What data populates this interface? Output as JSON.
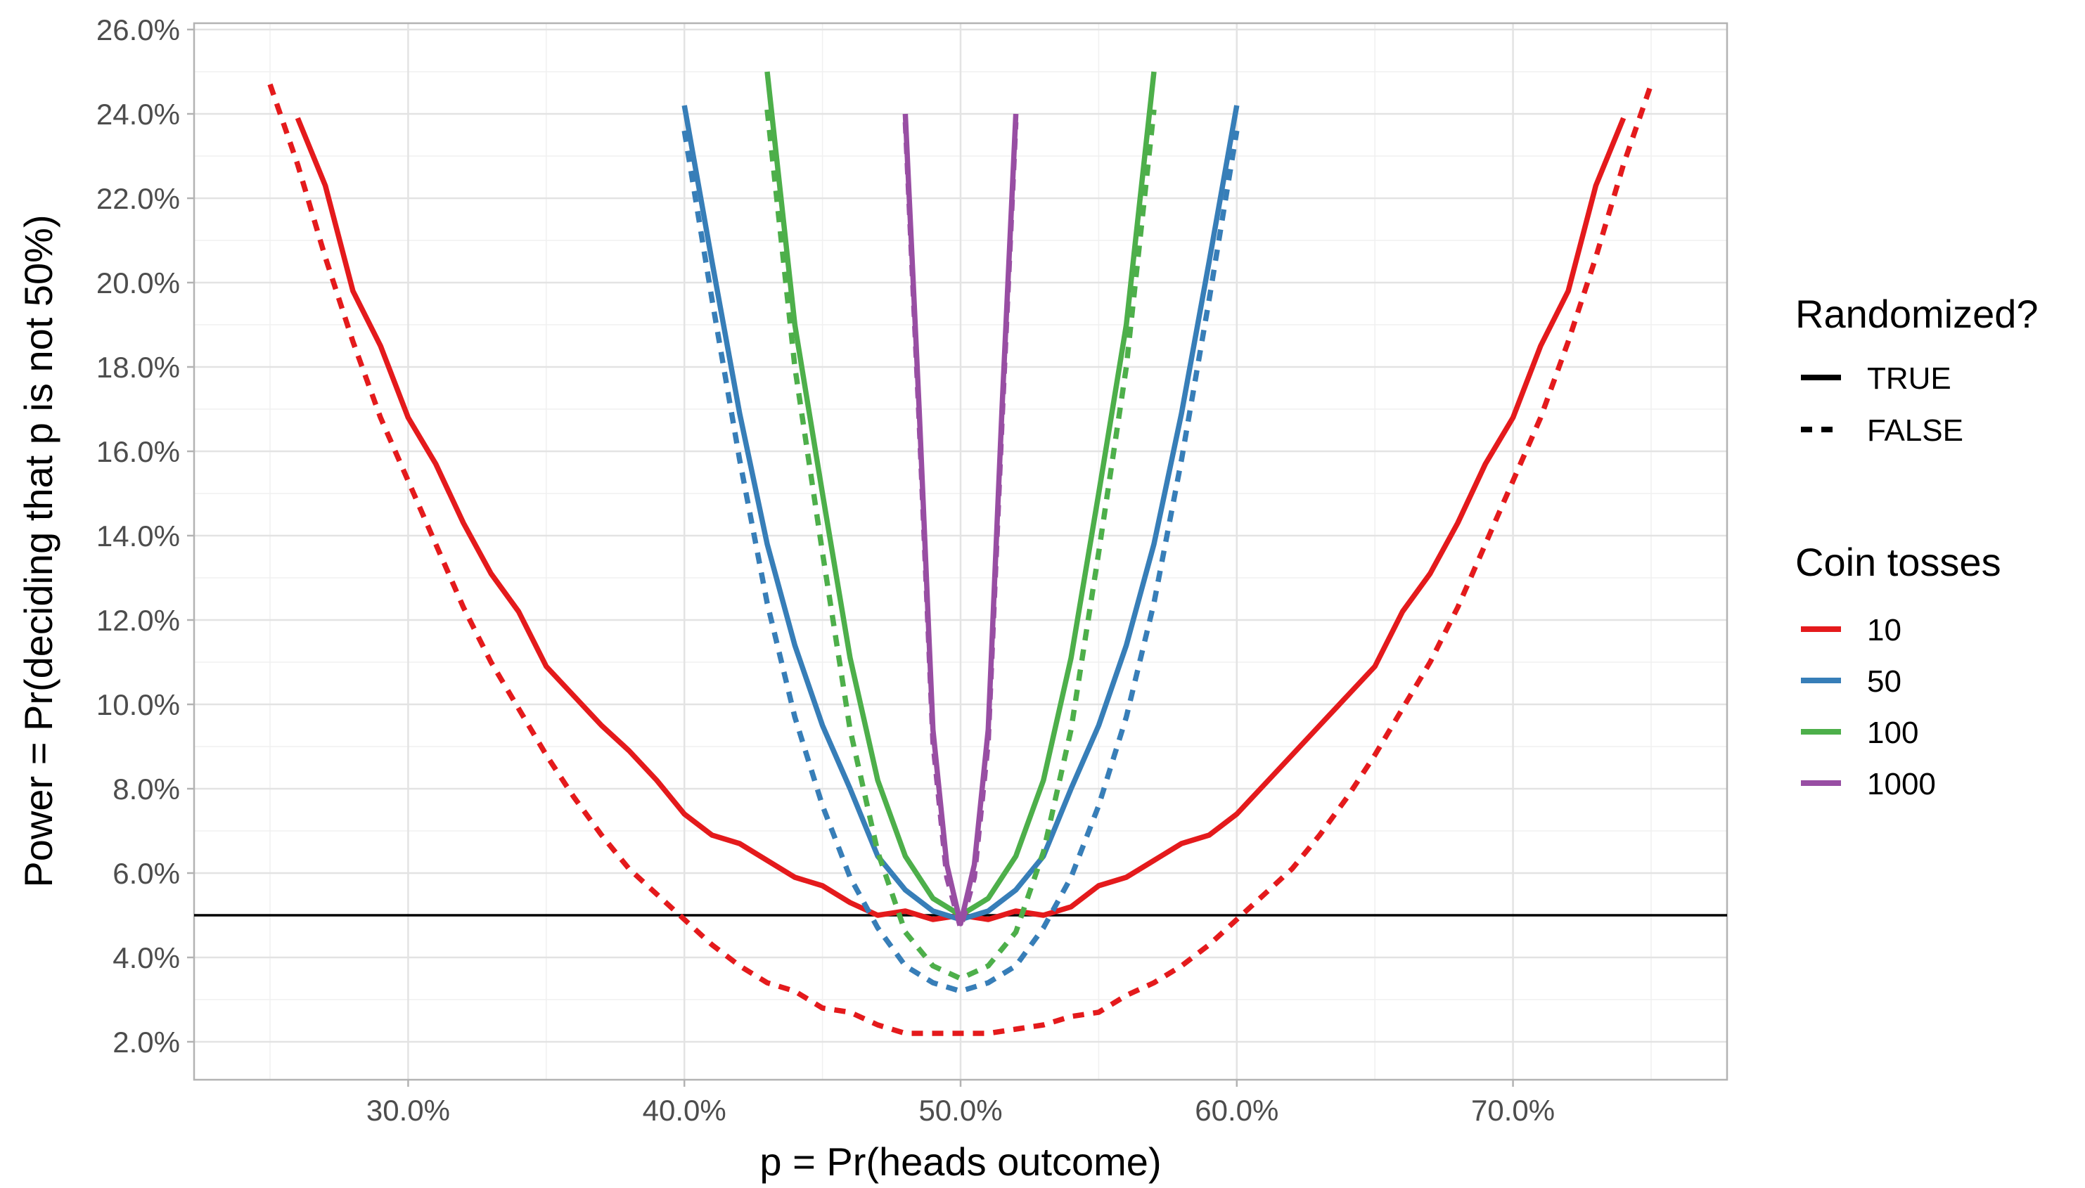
{
  "chart_data": {
    "type": "line",
    "title": "",
    "xlabel": "p = Pr(heads outcome)",
    "ylabel": "Power = Pr(deciding that p is not 50%)",
    "xlim": [
      0.2225,
      0.7775
    ],
    "ylim": [
      0.011,
      0.2615
    ],
    "x_ticks": [
      0.3,
      0.4,
      0.5,
      0.6,
      0.7
    ],
    "x_tick_labels": [
      "30.0%",
      "40.0%",
      "50.0%",
      "60.0%",
      "70.0%"
    ],
    "y_ticks": [
      0.02,
      0.04,
      0.06,
      0.08,
      0.1,
      0.12,
      0.14,
      0.16,
      0.18,
      0.2,
      0.22,
      0.24,
      0.26
    ],
    "y_tick_labels": [
      "2.0%",
      "4.0%",
      "6.0%",
      "8.0%",
      "10.0%",
      "12.0%",
      "14.0%",
      "16.0%",
      "18.0%",
      "20.0%",
      "22.0%",
      "24.0%",
      "26.0%"
    ],
    "grid": true,
    "reference_line": 0.05,
    "legend_position": "right",
    "legend": {
      "linetype_title": "Randomized?",
      "linetype_items": [
        {
          "label": "TRUE",
          "dash": "solid"
        },
        {
          "label": "FALSE",
          "dash": "dashed"
        }
      ],
      "color_title": "Coin tosses",
      "color_items": [
        {
          "label": "10",
          "color": "#e41a1c"
        },
        {
          "label": "50",
          "color": "#377eb8"
        },
        {
          "label": "100",
          "color": "#4daf4a"
        },
        {
          "label": "1000",
          "color": "#984ea3"
        }
      ]
    },
    "series": [
      {
        "name": "10",
        "randomized": "TRUE",
        "color": "#e41a1c",
        "dash": "solid",
        "x": [
          0.26,
          0.27,
          0.28,
          0.29,
          0.3,
          0.31,
          0.32,
          0.33,
          0.34,
          0.35,
          0.36,
          0.37,
          0.38,
          0.39,
          0.4,
          0.41,
          0.42,
          0.43,
          0.44,
          0.45,
          0.46,
          0.47,
          0.48,
          0.49,
          0.5,
          0.51,
          0.52,
          0.53,
          0.54,
          0.55,
          0.56,
          0.57,
          0.58,
          0.59,
          0.6,
          0.61,
          0.62,
          0.63,
          0.64,
          0.65,
          0.66,
          0.67,
          0.68,
          0.69,
          0.7,
          0.71,
          0.72,
          0.73,
          0.74
        ],
        "y": [
          0.239,
          0.223,
          0.198,
          0.185,
          0.168,
          0.157,
          0.143,
          0.131,
          0.122,
          0.109,
          0.102,
          0.095,
          0.089,
          0.082,
          0.074,
          0.069,
          0.067,
          0.063,
          0.059,
          0.057,
          0.053,
          0.05,
          0.051,
          0.049,
          0.05,
          0.049,
          0.051,
          0.05,
          0.052,
          0.057,
          0.059,
          0.063,
          0.067,
          0.069,
          0.074,
          0.081,
          0.088,
          0.095,
          0.102,
          0.109,
          0.122,
          0.131,
          0.143,
          0.157,
          0.168,
          0.185,
          0.198,
          0.223,
          0.239
        ]
      },
      {
        "name": "10",
        "randomized": "FALSE",
        "color": "#e41a1c",
        "dash": "dashed",
        "x": [
          0.25,
          0.26,
          0.27,
          0.28,
          0.29,
          0.3,
          0.31,
          0.32,
          0.33,
          0.34,
          0.35,
          0.36,
          0.37,
          0.38,
          0.39,
          0.4,
          0.41,
          0.42,
          0.43,
          0.44,
          0.45,
          0.46,
          0.47,
          0.48,
          0.49,
          0.5,
          0.51,
          0.52,
          0.53,
          0.54,
          0.55,
          0.56,
          0.57,
          0.58,
          0.59,
          0.6,
          0.61,
          0.62,
          0.63,
          0.64,
          0.65,
          0.66,
          0.67,
          0.68,
          0.69,
          0.7,
          0.71,
          0.72,
          0.73,
          0.74,
          0.75
        ],
        "y": [
          0.247,
          0.228,
          0.206,
          0.186,
          0.168,
          0.153,
          0.138,
          0.123,
          0.11,
          0.099,
          0.088,
          0.078,
          0.069,
          0.061,
          0.055,
          0.049,
          0.043,
          0.038,
          0.034,
          0.032,
          0.028,
          0.027,
          0.024,
          0.022,
          0.022,
          0.022,
          0.022,
          0.023,
          0.024,
          0.026,
          0.027,
          0.031,
          0.034,
          0.038,
          0.043,
          0.049,
          0.055,
          0.061,
          0.069,
          0.078,
          0.088,
          0.099,
          0.11,
          0.123,
          0.138,
          0.153,
          0.168,
          0.186,
          0.206,
          0.228,
          0.247
        ]
      },
      {
        "name": "50",
        "randomized": "TRUE",
        "color": "#377eb8",
        "dash": "solid",
        "x": [
          0.4,
          0.41,
          0.42,
          0.43,
          0.44,
          0.45,
          0.46,
          0.47,
          0.48,
          0.49,
          0.5,
          0.51,
          0.52,
          0.53,
          0.54,
          0.55,
          0.56,
          0.57,
          0.58,
          0.59,
          0.6
        ],
        "y": [
          0.242,
          0.205,
          0.169,
          0.138,
          0.114,
          0.095,
          0.08,
          0.064,
          0.056,
          0.051,
          0.049,
          0.051,
          0.056,
          0.064,
          0.08,
          0.095,
          0.114,
          0.138,
          0.169,
          0.205,
          0.242
        ]
      },
      {
        "name": "50",
        "randomized": "FALSE",
        "color": "#377eb8",
        "dash": "dashed",
        "x": [
          0.4,
          0.41,
          0.42,
          0.43,
          0.44,
          0.45,
          0.46,
          0.47,
          0.48,
          0.49,
          0.5,
          0.51,
          0.52,
          0.53,
          0.54,
          0.55,
          0.56,
          0.57,
          0.58,
          0.59,
          0.6
        ],
        "y": [
          0.236,
          0.196,
          0.158,
          0.124,
          0.097,
          0.076,
          0.059,
          0.047,
          0.038,
          0.034,
          0.032,
          0.034,
          0.038,
          0.047,
          0.059,
          0.076,
          0.097,
          0.124,
          0.158,
          0.196,
          0.236
        ]
      },
      {
        "name": "100",
        "randomized": "TRUE",
        "color": "#4daf4a",
        "dash": "solid",
        "x": [
          0.43,
          0.44,
          0.45,
          0.46,
          0.47,
          0.48,
          0.49,
          0.5,
          0.51,
          0.52,
          0.53,
          0.54,
          0.55,
          0.56,
          0.57
        ],
        "y": [
          0.25,
          0.19,
          0.15,
          0.111,
          0.082,
          0.064,
          0.054,
          0.05,
          0.054,
          0.064,
          0.082,
          0.111,
          0.15,
          0.19,
          0.25
        ]
      },
      {
        "name": "100",
        "randomized": "FALSE",
        "color": "#4daf4a",
        "dash": "dashed",
        "x": [
          0.43,
          0.44,
          0.45,
          0.46,
          0.47,
          0.48,
          0.49,
          0.5,
          0.51,
          0.52,
          0.53,
          0.54,
          0.55,
          0.56,
          0.57
        ],
        "y": [
          0.241,
          0.18,
          0.136,
          0.094,
          0.065,
          0.046,
          0.038,
          0.035,
          0.038,
          0.046,
          0.065,
          0.094,
          0.136,
          0.18,
          0.241
        ]
      },
      {
        "name": "1000",
        "randomized": "TRUE",
        "color": "#984ea3",
        "dash": "solid",
        "x": [
          0.48,
          0.485,
          0.49,
          0.495,
          0.5,
          0.505,
          0.51,
          0.515,
          0.52
        ],
        "y": [
          0.24,
          0.17,
          0.094,
          0.062,
          0.048,
          0.062,
          0.094,
          0.17,
          0.24
        ]
      },
      {
        "name": "1000",
        "randomized": "FALSE",
        "color": "#984ea3",
        "dash": "dashed",
        "x": [
          0.48,
          0.485,
          0.49,
          0.495,
          0.5,
          0.505,
          0.51,
          0.515,
          0.52
        ],
        "y": [
          0.238,
          0.167,
          0.091,
          0.059,
          0.047,
          0.059,
          0.091,
          0.167,
          0.238
        ]
      }
    ]
  }
}
